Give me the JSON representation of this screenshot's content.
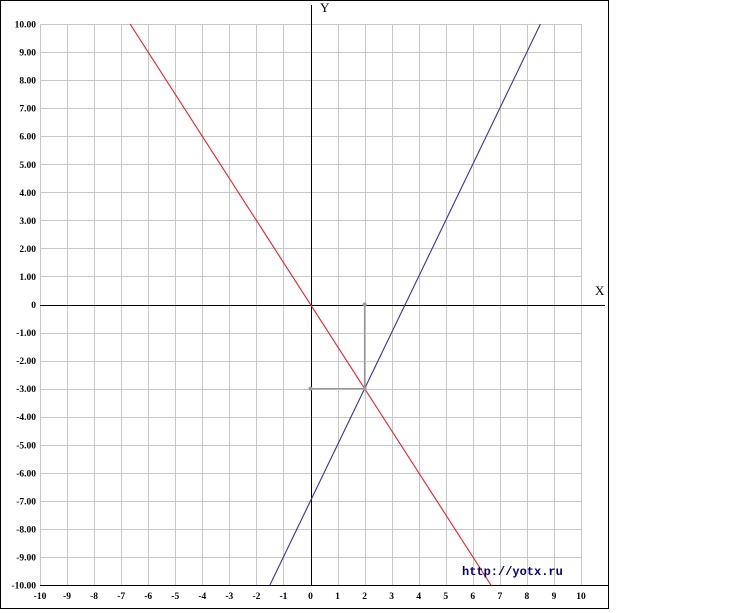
{
  "chart_data": {
    "type": "line",
    "xlabel": "X",
    "ylabel": "Y",
    "xlim": [
      -10,
      10
    ],
    "ylim": [
      -10,
      10
    ],
    "grid": true,
    "x_ticks": [
      "-10",
      "-9",
      "-8",
      "-7",
      "-6",
      "-5",
      "-4",
      "-3",
      "-2",
      "-1",
      "0",
      "1",
      "2",
      "3",
      "4",
      "5",
      "6",
      "7",
      "8",
      "9",
      "10"
    ],
    "y_ticks": [
      "10.00",
      "9.00",
      "8.00",
      "7.00",
      "6.00",
      "5.00",
      "4.00",
      "3.00",
      "2.00",
      "1.00",
      "0",
      "-1.00",
      "-2.00",
      "-3.00",
      "-4.00",
      "-5.00",
      "-6.00",
      "-7.00",
      "-8.00",
      "-9.00",
      "-10.00"
    ],
    "series": [
      {
        "color": "#e8202a",
        "points": [
          [
            -6.67,
            10
          ],
          [
            6.67,
            -10
          ]
        ]
      },
      {
        "color": "#3333a0",
        "points": [
          [
            -1.5,
            -10
          ],
          [
            8.5,
            10
          ]
        ]
      }
    ],
    "intersection_guides": {
      "color": "#999999",
      "point": [
        2,
        -3
      ],
      "vertical_from": [
        2,
        0
      ],
      "horizontal_from": [
        0,
        -3
      ]
    },
    "watermark": "http://yotx.ru"
  }
}
